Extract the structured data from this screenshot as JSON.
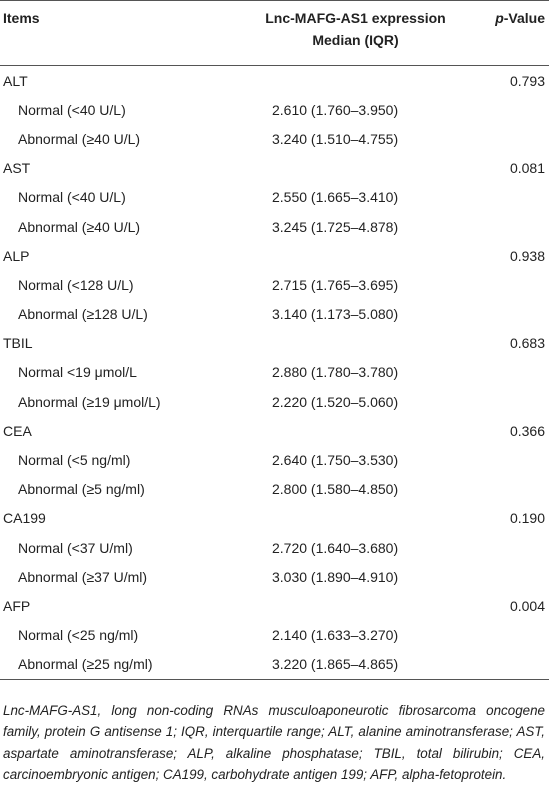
{
  "header": {
    "items": "Items",
    "expression_line1": "Lnc-MAFG-AS1 expression",
    "expression_line2": "Median (IQR)",
    "p_value_italic": "p",
    "p_value_rest": "-Value"
  },
  "groups": [
    {
      "name": "ALT",
      "p_value": "0.793",
      "rows": [
        {
          "label": "Normal (<40 U/L)",
          "median": "2.610 (1.760–3.950)"
        },
        {
          "label": "Abnormal (≥40 U/L)",
          "median": "3.240 (1.510–4.755)"
        }
      ]
    },
    {
      "name": "AST",
      "p_value": "0.081",
      "rows": [
        {
          "label": "Normal (<40 U/L)",
          "median": "2.550 (1.665–3.410)"
        },
        {
          "label": "Abnormal (≥40 U/L)",
          "median": "3.245 (1.725–4.878)"
        }
      ]
    },
    {
      "name": "ALP",
      "p_value": "0.938",
      "rows": [
        {
          "label": "Normal (<128 U/L)",
          "median": "2.715 (1.765–3.695)"
        },
        {
          "label": "Abnormal (≥128 U/L)",
          "median": "3.140 (1.173–5.080)"
        }
      ]
    },
    {
      "name": "TBIL",
      "p_value": "0.683",
      "rows": [
        {
          "label": "Normal <19 μmol/L",
          "median": "2.880 (1.780–3.780)"
        },
        {
          "label": "Abnormal (≥19 μmol/L)",
          "median": "2.220 (1.520–5.060)"
        }
      ]
    },
    {
      "name": "CEA",
      "p_value": "0.366",
      "rows": [
        {
          "label": "Normal (<5 ng/ml)",
          "median": "2.640 (1.750–3.530)"
        },
        {
          "label": "Abnormal (≥5 ng/ml)",
          "median": "2.800 (1.580–4.850)"
        }
      ]
    },
    {
      "name": "CA199",
      "p_value": "0.190",
      "rows": [
        {
          "label": "Normal (<37 U/ml)",
          "median": "2.720 (1.640–3.680)"
        },
        {
          "label": "Abnormal (≥37 U/ml)",
          "median": "3.030 (1.890–4.910)"
        }
      ]
    },
    {
      "name": "AFP",
      "p_value": "0.004",
      "rows": [
        {
          "label": "Normal (<25 ng/ml)",
          "median": "2.140 (1.633–3.270)"
        },
        {
          "label": "Abnormal (≥25 ng/ml)",
          "median": "3.220 (1.865–4.865)"
        }
      ]
    }
  ],
  "footnote": "Lnc-MAFG-AS1, long non-coding RNAs musculoaponeurotic fibrosarcoma oncogene family, protein G antisense 1; IQR, interquartile range; ALT, alanine aminotransferase; AST, aspartate aminotransferase; ALP, alkaline phosphatase; TBIL, total bilirubin; CEA, carcinoembryonic antigen; CA199, carbohydrate antigen 199; AFP, alpha-fetoprotein."
}
